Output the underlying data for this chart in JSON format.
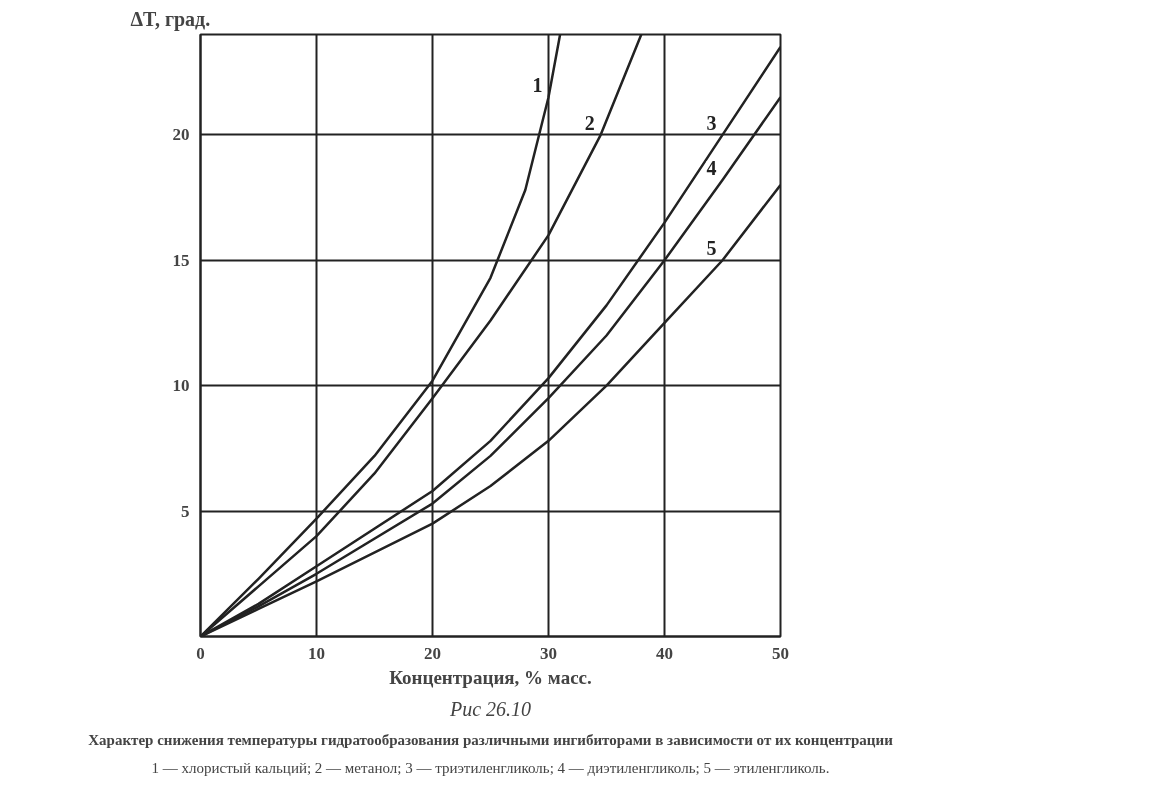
{
  "chart_data": {
    "type": "line",
    "title": "Характер снижения температуры гидратообразования различными ингибиторами в зависимости от их концентрации",
    "xlabel": "Концентрация, % масс.",
    "ylabel": "ΔT, град.",
    "xlim": [
      0,
      50
    ],
    "ylim": [
      0,
      24
    ],
    "xticks": [
      0,
      10,
      20,
      30,
      40,
      50
    ],
    "yticks": [
      5,
      10,
      15,
      20
    ],
    "grid": true,
    "legend": false,
    "marker": "none",
    "line_style": "solid",
    "series": [
      {
        "name": "1",
        "color": "#222222",
        "x": [
          0,
          5,
          10,
          15,
          20,
          25,
          28,
          30,
          31
        ],
        "values": [
          0,
          2.3,
          4.7,
          7.2,
          10.2,
          14.3,
          17.8,
          21.5,
          24
        ]
      },
      {
        "name": "2",
        "color": "#222222",
        "x": [
          0,
          5,
          10,
          15,
          20,
          25,
          30,
          34.5,
          38
        ],
        "values": [
          0,
          2,
          4,
          6.5,
          9.5,
          12.6,
          16,
          20,
          24
        ]
      },
      {
        "name": "3",
        "color": "#222222",
        "x": [
          0,
          5,
          10,
          20,
          25,
          30,
          35,
          40,
          45,
          50
        ],
        "values": [
          0,
          1.3,
          2.8,
          5.8,
          7.8,
          10.3,
          13.2,
          16.5,
          20,
          23.5
        ]
      },
      {
        "name": "4",
        "color": "#222222",
        "x": [
          0,
          5,
          10,
          20,
          25,
          30,
          35,
          40,
          45,
          50
        ],
        "values": [
          0,
          1.2,
          2.5,
          5.3,
          7.2,
          9.5,
          12,
          15,
          18.2,
          21.5
        ]
      },
      {
        "name": "5",
        "color": "#222222",
        "x": [
          0,
          5,
          10,
          20,
          25,
          30,
          35,
          40,
          45,
          50
        ],
        "values": [
          0,
          1.1,
          2.2,
          4.5,
          6,
          7.8,
          10,
          12.5,
          15,
          18
        ]
      }
    ],
    "annotations": [
      "Рис 26.10",
      "1 — хлористый кальций; 2 — метанол; 3 — триэтиленгликоль; 4 — диэтиленгликоль; 5 — этиленгликоль."
    ]
  }
}
